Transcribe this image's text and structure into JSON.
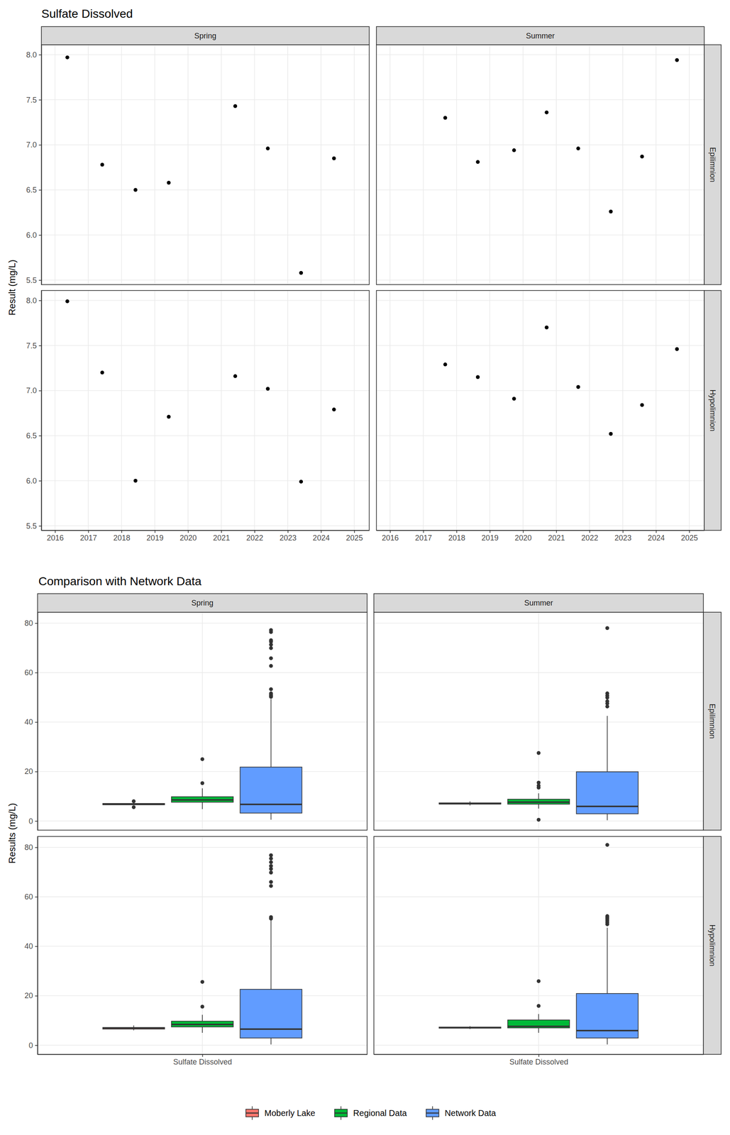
{
  "chart_data": [
    {
      "type": "scatter",
      "title": "Sulfate Dissolved",
      "y_label": "Result (mg/L)",
      "facet_columns": [
        "Spring",
        "Summer"
      ],
      "facet_rows": [
        "Epilimnion",
        "Hypolimnion"
      ],
      "xlim": [
        2015.59,
        2025.45
      ],
      "xticks": [
        2016,
        2017,
        2018,
        2019,
        2020,
        2021,
        2022,
        2023,
        2024,
        2025
      ],
      "ylim": [
        5.45,
        8.11
      ],
      "yticks": [
        5.5,
        {
          "value": 6,
          "label": "6.0"
        },
        6.5,
        {
          "value": 7,
          "label": "7.0"
        },
        7.5,
        {
          "value": 8,
          "label": "8.0"
        }
      ],
      "grid": true,
      "color": "#000000",
      "panels": [
        {
          "column": "Spring",
          "row": "Epilimnion",
          "x": [
            2016.37,
            2017.42,
            2018.42,
            2019.42,
            2021.42,
            2022.4,
            2023.4,
            2024.39
          ],
          "values": [
            7.97,
            6.78,
            6.5,
            6.58,
            7.43,
            6.96,
            5.58,
            6.85
          ]
        },
        {
          "column": "Summer",
          "row": "Epilimnion",
          "x": [
            2017.66,
            2018.64,
            2019.73,
            2020.71,
            2021.66,
            2022.64,
            2023.58,
            2024.63
          ],
          "values": [
            7.3,
            6.81,
            6.94,
            7.36,
            6.96,
            6.26,
            6.87,
            7.94
          ]
        },
        {
          "column": "Spring",
          "row": "Hypolimnion",
          "x": [
            2016.37,
            2017.42,
            2018.42,
            2019.42,
            2021.42,
            2022.4,
            2023.4,
            2024.39
          ],
          "values": [
            7.99,
            7.2,
            6.0,
            6.71,
            7.16,
            7.02,
            5.99,
            6.79
          ]
        },
        {
          "column": "Summer",
          "row": "Hypolimnion",
          "x": [
            2017.66,
            2018.64,
            2019.73,
            2020.71,
            2021.66,
            2022.64,
            2023.58,
            2024.63
          ],
          "values": [
            7.29,
            7.15,
            6.91,
            7.7,
            7.04,
            6.52,
            6.84,
            7.46
          ]
        }
      ]
    },
    {
      "type": "box",
      "title": "Comparison with Network Data",
      "y_label": "Results (mg/L)",
      "categories": [
        "Sulfate Dissolved"
      ],
      "facet_columns": [
        "Spring",
        "Summer"
      ],
      "facet_rows": [
        "Epilimnion",
        "Hypolimnion"
      ],
      "ylim": [
        -3.7,
        84.4
      ],
      "yticks": [
        0,
        20,
        40,
        60,
        80
      ],
      "grid": true,
      "legend": "bottom",
      "series": [
        {
          "name": "Moberly Lake",
          "color": "#F8766D",
          "panels": [
            {
              "column": "Spring",
              "row": "Epilimnion",
              "category": "Sulfate Dissolved",
              "low": 6.5,
              "q1": 6.56,
              "median": 6.82,
              "q3": 7.08,
              "high": 7.43,
              "outliers": [
                5.58,
                7.98
              ]
            },
            {
              "column": "Summer",
              "row": "Epilimnion",
              "category": "Sulfate Dissolved",
              "low": 6.26,
              "q1": 6.86,
              "median": 6.95,
              "q3": 7.32,
              "high": 7.94,
              "outliers": []
            },
            {
              "column": "Spring",
              "row": "Hypolimnion",
              "category": "Sulfate Dissolved",
              "low": 5.99,
              "q1": 6.53,
              "median": 6.91,
              "q3": 7.17,
              "high": 7.99,
              "outliers": []
            },
            {
              "column": "Summer",
              "row": "Hypolimnion",
              "category": "Sulfate Dissolved",
              "low": 6.52,
              "q1": 6.89,
              "median": 7.1,
              "q3": 7.33,
              "high": 7.7,
              "outliers": []
            }
          ]
        },
        {
          "name": "Regional Data",
          "color": "#00BA38",
          "panels": [
            {
              "column": "Spring",
              "row": "Epilimnion",
              "category": "Sulfate Dissolved",
              "low": 4.8,
              "q1": 7.6,
              "median": 8.5,
              "q3": 9.8,
              "high": 13.2,
              "outliers": [
                15.3,
                25.0
              ]
            },
            {
              "column": "Summer",
              "row": "Epilimnion",
              "category": "Sulfate Dissolved",
              "low": 5.0,
              "q1": 6.8,
              "median": 7.6,
              "q3": 8.8,
              "high": 11.2,
              "outliers": [
                0.5,
                13.5,
                14.3,
                15.5,
                27.5
              ]
            },
            {
              "column": "Spring",
              "row": "Hypolimnion",
              "category": "Sulfate Dissolved",
              "low": 5.0,
              "q1": 7.4,
              "median": 8.4,
              "q3": 9.7,
              "high": 12.3,
              "outliers": [
                15.6,
                25.6
              ]
            },
            {
              "column": "Summer",
              "row": "Hypolimnion",
              "category": "Sulfate Dissolved",
              "low": 5.0,
              "q1": 7.0,
              "median": 7.6,
              "q3": 10.2,
              "high": 12.6,
              "outliers": [
                15.9,
                25.9
              ]
            }
          ]
        },
        {
          "name": "Network Data",
          "color": "#619CFF",
          "panels": [
            {
              "column": "Spring",
              "row": "Epilimnion",
              "category": "Sulfate Dissolved",
              "low": 0.5,
              "q1": 3.2,
              "median": 6.7,
              "q3": 21.8,
              "high": 49.3,
              "outliers": [
                50.2,
                50.6,
                51.0,
                51.6,
                53.3,
                62.7,
                65.8,
                69.9,
                71.3,
                72.5,
                73.1,
                76.4,
                77.2
              ]
            },
            {
              "column": "Summer",
              "row": "Epilimnion",
              "category": "Sulfate Dissolved",
              "low": 0.3,
              "q1": 2.9,
              "median": 5.9,
              "q3": 19.9,
              "high": 42.5,
              "outliers": [
                46.3,
                47.5,
                48.4,
                49.9,
                50.7,
                51.6,
                78.0
              ]
            },
            {
              "column": "Spring",
              "row": "Hypolimnion",
              "category": "Sulfate Dissolved",
              "low": 0.3,
              "q1": 2.9,
              "median": 6.5,
              "q3": 22.6,
              "high": 50.5,
              "outliers": [
                51.2,
                51.8,
                64.4,
                66.0,
                69.8,
                71.3,
                72.5,
                74.0,
                75.5,
                76.8
              ]
            },
            {
              "column": "Summer",
              "row": "Hypolimnion",
              "category": "Sulfate Dissolved",
              "low": 0.3,
              "q1": 2.9,
              "median": 5.9,
              "q3": 20.9,
              "high": 47.5,
              "outliers": [
                48.9,
                49.6,
                50.3,
                51.0,
                51.6,
                52.2,
                81.0
              ]
            }
          ]
        }
      ]
    }
  ]
}
